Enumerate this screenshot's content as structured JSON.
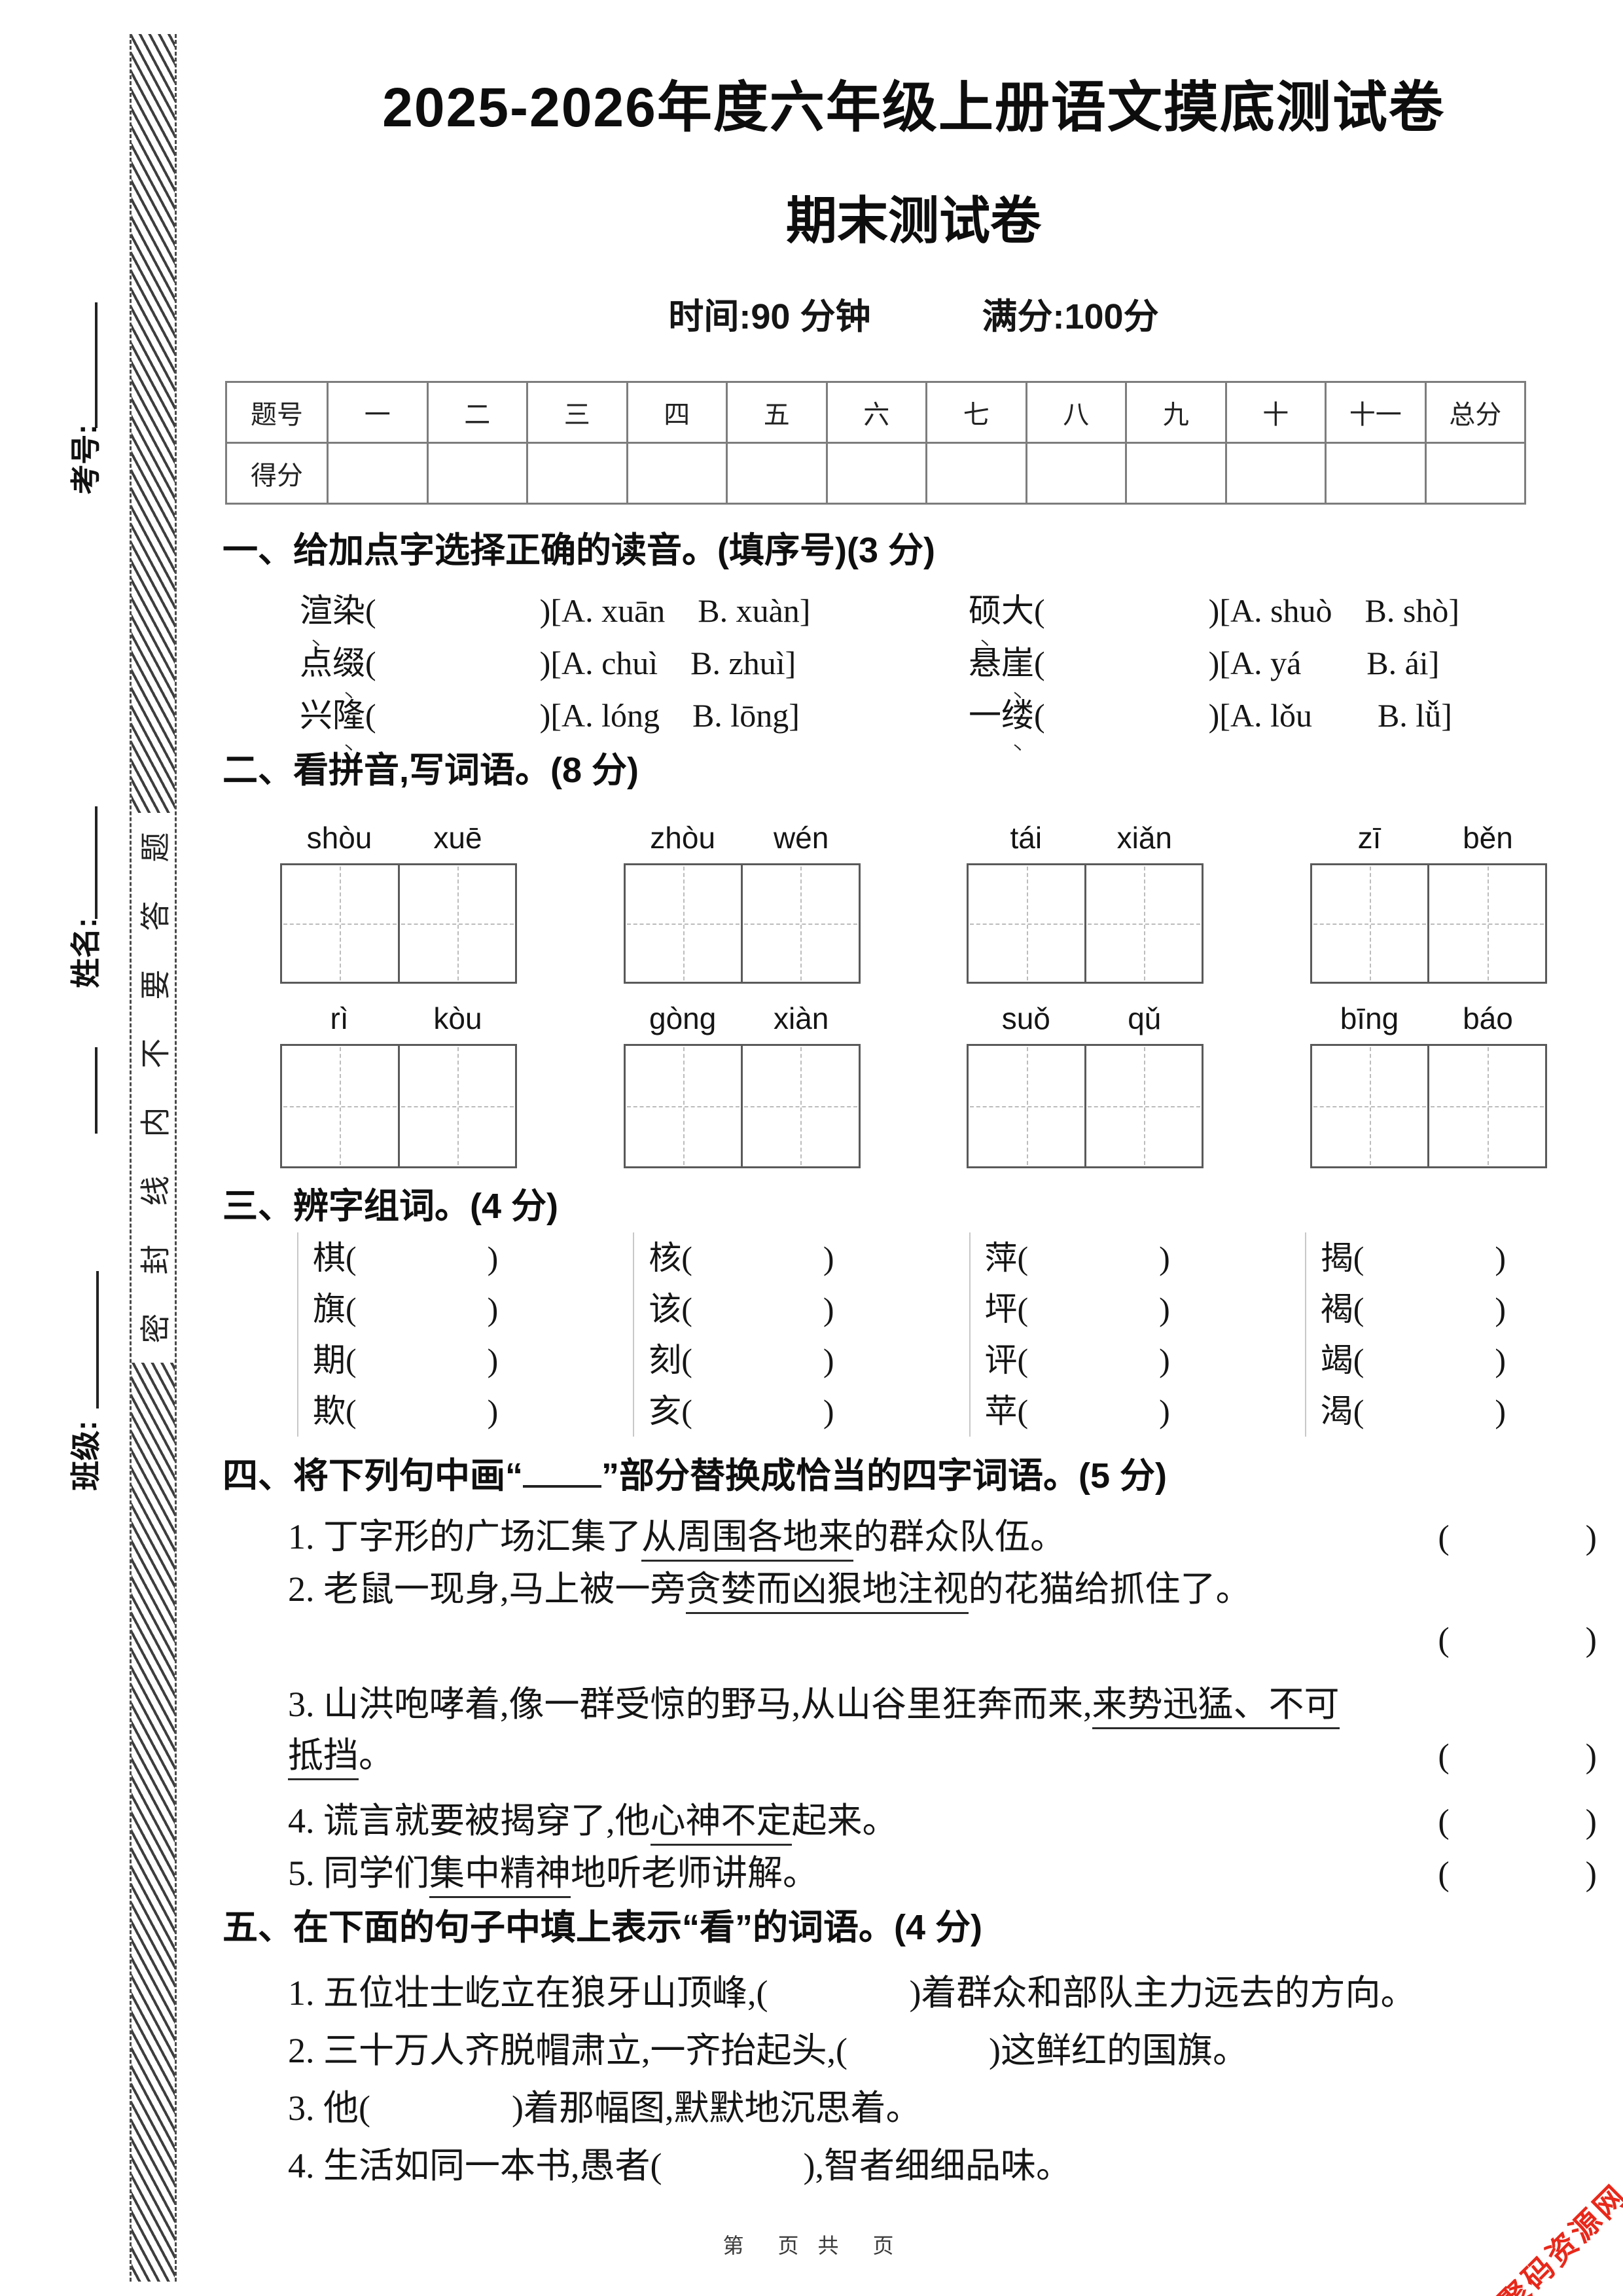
{
  "page": {
    "title": "2025-2026年度六年级上册语文摸底测试卷",
    "subtitle": "期末测试卷",
    "time_left": "时间:90 分钟",
    "time_right": "满分:100分",
    "footer": "第　页 共　页",
    "watermark": "聚码资源网",
    "accent_red": "#e8281a"
  },
  "sidebar": {
    "labels": [
      "考号:",
      "姓名:",
      "班级:"
    ],
    "seal_chars": [
      "题",
      "答",
      "要",
      "不",
      "内",
      "线",
      "封",
      "密"
    ],
    "seal_text_reading": "密封线内不要答题"
  },
  "score_table": {
    "headers": [
      "题号",
      "一",
      "二",
      "三",
      "四",
      "五",
      "六",
      "七",
      "八",
      "九",
      "十",
      "十一",
      "总分"
    ],
    "score_label": "得分"
  },
  "s1": {
    "heading": "一、给加点字选择正确的读音。(填序号)(3 分)",
    "paren": "(　　　　　)",
    "rows": [
      [
        {
          "w": "渲染",
          "d": 0,
          "opt": "[A. xuān　B. xuàn]"
        },
        {
          "w": "硕大",
          "d": 0,
          "opt": "[A. shuò　B. shò]"
        }
      ],
      [
        {
          "w": "点缀",
          "d": 1,
          "opt": "[A. chuì　B. zhuì]"
        },
        {
          "w": "悬崖",
          "d": 1,
          "opt": "[A. yá　　B. ái]"
        }
      ],
      [
        {
          "w": "兴隆",
          "d": 1,
          "opt": "[A. lóng　B. lōng]"
        },
        {
          "w": "一缕",
          "d": 1,
          "opt": "[A. lǒu　　B. lǚ]"
        }
      ]
    ]
  },
  "s2": {
    "heading": "二、看拼音,写词语。(8 分)",
    "rows": [
      [
        [
          "shòu",
          "xuē"
        ],
        [
          "zhòu",
          "wén"
        ],
        [
          "tái",
          "xiǎn"
        ],
        [
          "zī",
          "běn"
        ]
      ],
      [
        [
          "rì",
          "kòu"
        ],
        [
          "gòng",
          "xiàn"
        ],
        [
          "suǒ",
          "qǔ"
        ],
        [
          "bīng",
          "báo"
        ]
      ]
    ]
  },
  "s3": {
    "heading": "三、辨字组词。(4 分)",
    "paren": "(　　　　)",
    "columns": [
      [
        "棋",
        "旗",
        "期",
        "欺"
      ],
      [
        "核",
        "该",
        "刻",
        "亥"
      ],
      [
        "萍",
        "坪",
        "评",
        "苹"
      ],
      [
        "揭",
        "褐",
        "竭",
        "渴"
      ]
    ]
  },
  "s4": {
    "heading_pre": "四、将下列句中画“",
    "heading_post": "”部分替换成恰当的四字词语。(5 分)",
    "paren": "(　　　　)",
    "items": [
      {
        "pre": "1. 丁字形的广场汇集了",
        "u": "从周围各地来",
        "post": "的群众队伍。",
        "paren": "inline",
        "spaced": false
      },
      {
        "pre": "2. 老鼠一现身,马上被一旁",
        "u": "贪婪而凶狠地注视",
        "post": "的花猫给抓住了。",
        "paren": "newline",
        "spaced": false
      },
      {
        "pre": "3. 山洪咆哮着,像一群受惊的野马,从山谷里狂奔而来,",
        "u": "来势迅猛、不可",
        "post": "",
        "paren": "none",
        "spaced": true
      },
      {
        "pre": "",
        "u": "抵挡",
        "post": "。",
        "paren": "inline",
        "spaced": false
      },
      {
        "pre": "4. 谎言就要被揭穿了,他",
        "u": "心神不定",
        "post": "起来。",
        "paren": "inline",
        "spaced": true
      },
      {
        "pre": "5. 同学们",
        "u": "集中精神",
        "post": "地听老师讲解。",
        "paren": "inline",
        "spaced": false
      }
    ]
  },
  "s5": {
    "heading": "五、在下面的句子中填上表示“看”的词语。(4 分)",
    "items": [
      "1. 五位壮士屹立在狼牙山顶峰,(　　　　)着群众和部队主力远去的方向。",
      "2. 三十万人齐脱帽肃立,一齐抬起头,(　　　　)这鲜红的国旗。",
      "3. 他(　　　　)着那幅图,默默地沉思着。",
      "4. 生活如同一本书,愚者(　　　　),智者细细品味。"
    ]
  }
}
